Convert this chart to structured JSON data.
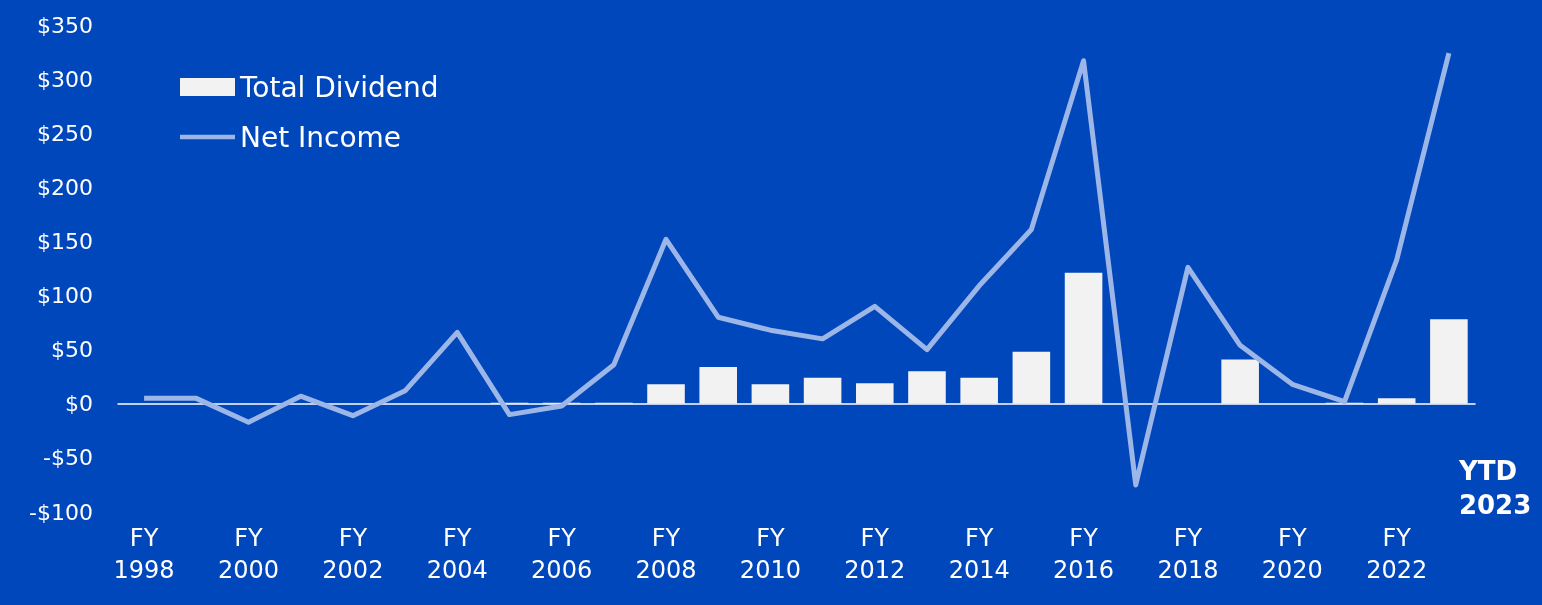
{
  "chart_data": {
    "type": "bar",
    "categories": [
      "FY\n1998",
      null,
      "FY\n2000",
      null,
      "FY\n2002",
      null,
      "FY\n2004",
      null,
      "FY\n2006",
      null,
      "FY\n2008",
      null,
      "FY\n2010",
      null,
      "FY\n2012",
      null,
      "FY\n2014",
      null,
      "FY\n2016",
      null,
      "FY\n2018",
      null,
      "FY\n2020",
      null,
      "FY\n2022",
      null
    ],
    "annotations": [
      "YTD\n2023"
    ],
    "series": [
      {
        "name": "Total Dividend",
        "color": "#f2f2f2",
        "values": [
          0,
          0,
          0,
          0,
          0,
          0,
          0,
          1,
          1,
          1,
          18,
          34,
          18,
          24,
          19,
          30,
          24,
          48,
          121,
          0,
          0,
          41,
          0,
          1,
          5,
          78
        ]
      },
      {
        "name": "Net Income",
        "type": "line",
        "color": "#9db6e8",
        "values": [
          5,
          5,
          -17,
          7,
          -11,
          12,
          66,
          -10,
          -2,
          36,
          152,
          80,
          68,
          60,
          90,
          50,
          109,
          161,
          317,
          -75,
          126,
          54,
          18,
          2,
          133,
          324
        ]
      }
    ],
    "ylim": [
      -100,
      350
    ],
    "yticks": [
      {
        "value": -100,
        "label": "-$100"
      },
      {
        "value": -50,
        "label": "-$50"
      },
      {
        "value": 0,
        "label": "$0"
      },
      {
        "value": 50,
        "label": "$50"
      },
      {
        "value": 100,
        "label": "$100"
      },
      {
        "value": 150,
        "label": "$150"
      },
      {
        "value": 200,
        "label": "$200"
      },
      {
        "value": 250,
        "label": "$250"
      },
      {
        "value": 300,
        "label": "$300"
      },
      {
        "value": 350,
        "label": "$350"
      }
    ],
    "legend": "top left",
    "marker": "none"
  }
}
